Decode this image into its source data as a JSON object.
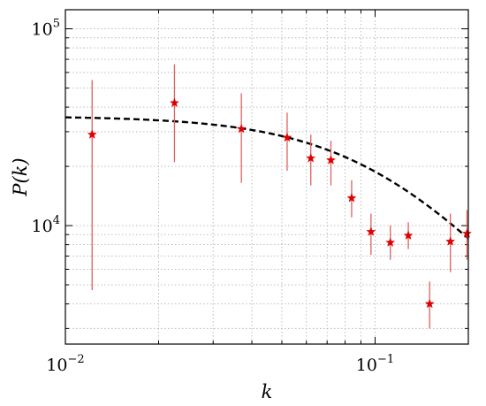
{
  "chart_data": {
    "type": "scatter",
    "xlabel": "k",
    "ylabel": "P(k)",
    "xscale": "log",
    "yscale": "log",
    "xlim": [
      0.01,
      0.2
    ],
    "ylim": [
      2500,
      125000
    ],
    "grid": true,
    "x_ticks": [
      {
        "value": 0.01,
        "base": "10",
        "exp": "−2"
      },
      {
        "value": 0.1,
        "base": "10",
        "exp": "−1"
      }
    ],
    "y_ticks": [
      {
        "value": 10000,
        "base": "10",
        "exp": "4"
      },
      {
        "value": 100000,
        "base": "10",
        "exp": "5"
      }
    ],
    "colors": {
      "points": "#e00000",
      "errorbars": "#e06060",
      "model": "#000000"
    },
    "series": [
      {
        "marker": "star",
        "points": [
          {
            "x": 0.0122,
            "y": 29000,
            "ylow": 4700,
            "yhigh": 55000
          },
          {
            "x": 0.0225,
            "y": 42000,
            "ylow": 21000,
            "yhigh": 66000
          },
          {
            "x": 0.037,
            "y": 31000,
            "ylow": 16500,
            "yhigh": 47000
          },
          {
            "x": 0.052,
            "y": 28000,
            "ylow": 19000,
            "yhigh": 37500
          },
          {
            "x": 0.062,
            "y": 22000,
            "ylow": 16000,
            "yhigh": 29000
          },
          {
            "x": 0.072,
            "y": 21500,
            "ylow": 16000,
            "yhigh": 27000
          },
          {
            "x": 0.084,
            "y": 13800,
            "ylow": 11000,
            "yhigh": 17000
          },
          {
            "x": 0.097,
            "y": 9300,
            "ylow": 7100,
            "yhigh": 11500
          },
          {
            "x": 0.112,
            "y": 8200,
            "ylow": 6700,
            "yhigh": 10000
          },
          {
            "x": 0.128,
            "y": 8900,
            "ylow": 7600,
            "yhigh": 10400
          },
          {
            "x": 0.15,
            "y": 4000,
            "ylow": 3000,
            "yhigh": 5200
          },
          {
            "x": 0.175,
            "y": 8300,
            "ylow": 5800,
            "yhigh": 11500
          },
          {
            "x": 0.198,
            "y": 9100,
            "ylow": 6700,
            "yhigh": 12000
          }
        ]
      },
      {
        "line_style": "dashed",
        "model": {
          "amplitude": 36000,
          "k0": 0.105,
          "slope": 1.8
        }
      }
    ]
  }
}
